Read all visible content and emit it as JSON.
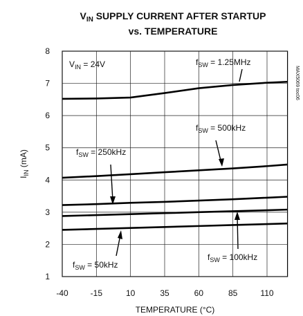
{
  "chart_data": {
    "type": "line",
    "title": {
      "main": "V",
      "sub": "IN",
      "rest": " SUPPLY CURRENT AFTER STARTUP"
    },
    "subtitle": "vs. TEMPERATURE",
    "x_label": "TEMPERATURE (°C)",
    "y_label": {
      "main": "I",
      "sub": "IN",
      "rest": " (mA)"
    },
    "side_note": "MAX5069 toc06",
    "condition": {
      "main": "V",
      "sub": "IN",
      "rest": " = 24V"
    },
    "x": [
      -40,
      -15,
      10,
      35,
      60,
      85,
      110,
      125
    ],
    "xlim": [
      -40,
      125
    ],
    "xticks": [
      -40,
      -15,
      10,
      35,
      60,
      85,
      110
    ],
    "ylim": [
      1,
      8
    ],
    "yticks": [
      1,
      2,
      3,
      4,
      5,
      6,
      7,
      8
    ],
    "grid": true,
    "series": [
      {
        "label": {
          "main": "f",
          "sub": "SW",
          "rest": " = 1.25MHz"
        },
        "color": "#000000",
        "values": [
          6.52,
          6.53,
          6.56,
          6.7,
          6.85,
          6.95,
          7.02,
          7.05
        ]
      },
      {
        "label": {
          "main": "f",
          "sub": "SW",
          "rest": " = 500kHz"
        },
        "color": "#000000",
        "values": [
          4.07,
          4.12,
          4.18,
          4.24,
          4.3,
          4.36,
          4.43,
          4.48
        ]
      },
      {
        "label": {
          "main": "f",
          "sub": "SW",
          "rest": " = 250kHz"
        },
        "color": "#000000",
        "values": [
          3.22,
          3.25,
          3.29,
          3.32,
          3.36,
          3.4,
          3.45,
          3.48
        ]
      },
      {
        "label": {
          "main": "f",
          "sub": "SW",
          "rest": " = 100kHz"
        },
        "color": "#000000",
        "values": [
          2.88,
          2.91,
          2.94,
          2.97,
          3.0,
          3.03,
          3.06,
          3.08
        ]
      },
      {
        "label": {
          "main": "f",
          "sub": "SW",
          "rest": " = 50kHz"
        },
        "color": "#000000",
        "values": [
          2.45,
          2.48,
          2.51,
          2.54,
          2.57,
          2.6,
          2.63,
          2.65
        ]
      }
    ]
  }
}
